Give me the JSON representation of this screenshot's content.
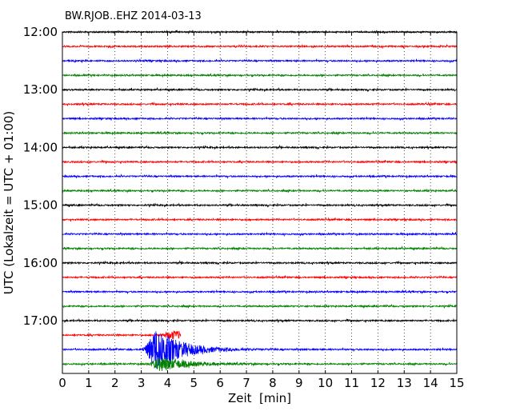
{
  "chart_data": {
    "type": "line",
    "title": "BW.RJOB..EHZ 2014-03-13",
    "xlabel": "Zeit  [min]",
    "ylabel": "UTC (Lokalzeit = UTC + 01:00)",
    "xlim": [
      0,
      15
    ],
    "x_ticks": [
      0,
      1,
      2,
      3,
      4,
      5,
      6,
      7,
      8,
      9,
      10,
      11,
      12,
      13,
      14,
      15
    ],
    "y_tick_labels": [
      "12:00",
      "13:00",
      "14:00",
      "15:00",
      "16:00",
      "17:00"
    ],
    "x_grid": true,
    "trace_colors": [
      "#000000",
      "#ff0000",
      "#0000ff",
      "#008000"
    ],
    "trace_interval_min": 15,
    "traces": [
      {
        "start": "12:00",
        "color": "#000000"
      },
      {
        "start": "12:15",
        "color": "#ff0000"
      },
      {
        "start": "12:30",
        "color": "#0000ff"
      },
      {
        "start": "12:45",
        "color": "#008000"
      },
      {
        "start": "13:00",
        "color": "#000000"
      },
      {
        "start": "13:15",
        "color": "#ff0000"
      },
      {
        "start": "13:30",
        "color": "#0000ff"
      },
      {
        "start": "13:45",
        "color": "#008000"
      },
      {
        "start": "14:00",
        "color": "#000000"
      },
      {
        "start": "14:15",
        "color": "#ff0000"
      },
      {
        "start": "14:30",
        "color": "#0000ff"
      },
      {
        "start": "14:45",
        "color": "#008000"
      },
      {
        "start": "15:00",
        "color": "#000000"
      },
      {
        "start": "15:15",
        "color": "#ff0000"
      },
      {
        "start": "15:30",
        "color": "#0000ff"
      },
      {
        "start": "15:45",
        "color": "#008000"
      },
      {
        "start": "16:00",
        "color": "#000000"
      },
      {
        "start": "16:15",
        "color": "#ff0000"
      },
      {
        "start": "16:30",
        "color": "#0000ff"
      },
      {
        "start": "16:45",
        "color": "#008000"
      },
      {
        "start": "17:00",
        "color": "#000000"
      },
      {
        "start": "17:15",
        "color": "#ff0000",
        "end_min": 4.5,
        "event": {
          "at_min": 4.2,
          "amp": 0.5
        }
      },
      {
        "start": "17:30",
        "color": "#0000ff",
        "event": {
          "at_min": 3.6,
          "amp": 2.6
        }
      },
      {
        "start": "17:45",
        "color": "#008000",
        "event": {
          "at_min": 3.8,
          "amp": 0.9
        }
      }
    ]
  }
}
